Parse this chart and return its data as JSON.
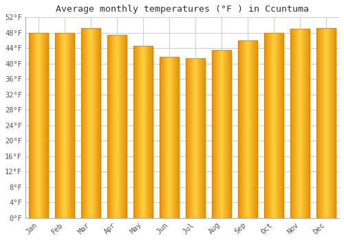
{
  "title": "Average monthly temperatures (°F ) in Ccuntuma",
  "months": [
    "Jan",
    "Feb",
    "Mar",
    "Apr",
    "May",
    "Jun",
    "Jul",
    "Aug",
    "Sep",
    "Oct",
    "Nov",
    "Dec"
  ],
  "values": [
    48.0,
    48.0,
    49.2,
    47.5,
    44.5,
    41.8,
    41.3,
    43.5,
    46.0,
    48.0,
    49.0,
    49.2
  ],
  "bar_color_left": "#E8920A",
  "bar_color_center": "#FFD040",
  "bar_color_right": "#E8920A",
  "ylim": [
    0,
    52
  ],
  "yticks": [
    0,
    4,
    8,
    12,
    16,
    20,
    24,
    28,
    32,
    36,
    40,
    44,
    48,
    52
  ],
  "grid_color": "#cccccc",
  "bg_color": "#ffffff",
  "title_fontsize": 9.5,
  "tick_fontsize": 7.5,
  "font_family": "monospace"
}
